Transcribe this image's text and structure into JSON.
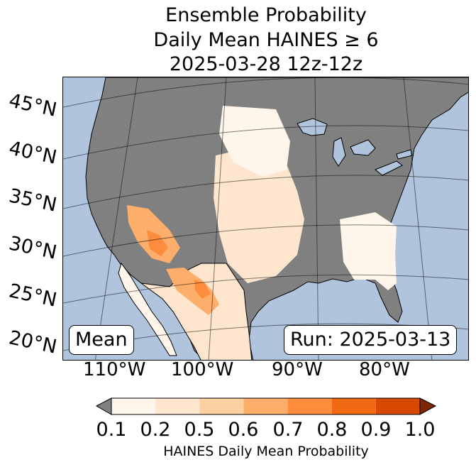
{
  "title": {
    "line1": "Ensemble Probability",
    "line2": "Daily Mean HAINES ≥ 6",
    "line3": "2025-03-28 12z-12z"
  },
  "map": {
    "mean_label": "Mean",
    "run_label": "Run: 2025-03-13",
    "latitude_labels": [
      "45°N",
      "40°N",
      "35°N",
      "30°N",
      "25°N",
      "20°N"
    ],
    "longitude_labels": [
      "110°W",
      "100°W",
      "90°W",
      "80°W"
    ],
    "colors": {
      "ocean": "#b0c4de",
      "no_data_land": "#808080"
    }
  },
  "colorbar": {
    "label": "HAINES Daily Mean Probability",
    "ticks": [
      "0.1",
      "0.2",
      "0.5",
      "0.6",
      "0.7",
      "0.8",
      "0.9",
      "1.0"
    ],
    "under_color": "#808080",
    "over_color": "#7f2704",
    "bins": [
      {
        "from": 0.1,
        "to": 0.2,
        "color": "#fff5eb"
      },
      {
        "from": 0.2,
        "to": 0.5,
        "color": "#fee6ce"
      },
      {
        "from": 0.5,
        "to": 0.6,
        "color": "#fdd0a2"
      },
      {
        "from": 0.6,
        "to": 0.7,
        "color": "#fdae6b"
      },
      {
        "from": 0.7,
        "to": 0.8,
        "color": "#fd8d3c"
      },
      {
        "from": 0.8,
        "to": 0.9,
        "color": "#f16913"
      },
      {
        "from": 0.9,
        "to": 1.0,
        "color": "#d94801"
      }
    ]
  }
}
